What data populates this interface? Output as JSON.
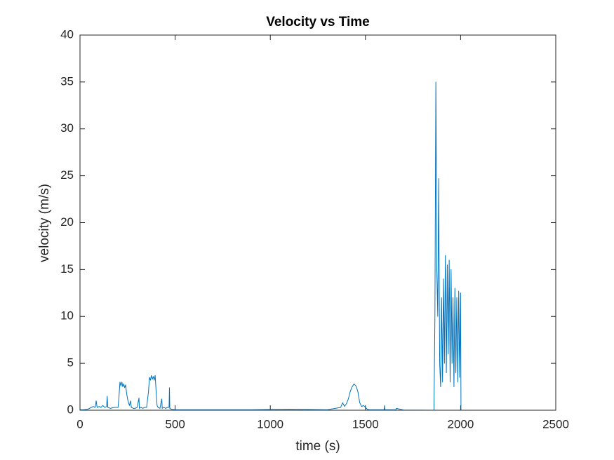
{
  "chart_data": {
    "type": "line",
    "title": "Velocity vs Time",
    "x_label": "time (s)",
    "y_label": "velocity (m/s)",
    "xlim": [
      0,
      2500
    ],
    "ylim": [
      0,
      40
    ],
    "xticks": [
      0,
      500,
      1000,
      1500,
      2000,
      2500
    ],
    "yticks": [
      0,
      5,
      10,
      15,
      20,
      25,
      30,
      35,
      40
    ],
    "grid": false,
    "x": [
      0,
      20,
      40,
      60,
      70,
      80,
      85,
      90,
      100,
      110,
      120,
      130,
      140,
      143,
      146,
      160,
      180,
      200,
      205,
      210,
      215,
      220,
      225,
      230,
      235,
      240,
      245,
      250,
      255,
      260,
      265,
      270,
      280,
      290,
      300,
      310,
      312,
      320,
      330,
      340,
      350,
      360,
      365,
      370,
      375,
      380,
      385,
      390,
      395,
      400,
      405,
      410,
      420,
      430,
      432,
      440,
      450,
      460,
      468,
      470,
      472,
      480,
      500,
      700,
      900,
      1100,
      1300,
      1370,
      1380,
      1390,
      1400,
      1410,
      1420,
      1430,
      1440,
      1450,
      1460,
      1470,
      1480,
      1490,
      1500,
      1510,
      1520,
      1598,
      1600,
      1602,
      1660,
      1662,
      1700,
      1860,
      1865,
      1870,
      1875,
      1880,
      1885,
      1890,
      1895,
      1900,
      1905,
      1910,
      1915,
      1920,
      1925,
      1930,
      1935,
      1940,
      1945,
      1950,
      1955,
      1960,
      1965,
      1970,
      1975,
      1980,
      1985,
      1990,
      1995,
      2000,
      2002
    ],
    "series": [
      {
        "color": "#0072bd",
        "values": [
          0.05,
          0.05,
          0.1,
          0.3,
          0.4,
          0.3,
          1.0,
          0.3,
          0.4,
          0.3,
          0.5,
          0.3,
          0.4,
          1.5,
          0.3,
          0.2,
          0.3,
          0.3,
          1.5,
          3.0,
          2.6,
          3.0,
          2.5,
          2.8,
          2.4,
          2.7,
          1.8,
          1.2,
          0.8,
          0.5,
          1.0,
          0.3,
          0.2,
          0.2,
          0.3,
          1.3,
          0.2,
          0.3,
          0.2,
          0.3,
          0.3,
          2.0,
          3.5,
          3.2,
          3.7,
          3.3,
          3.6,
          3.2,
          3.7,
          2.0,
          0.5,
          0.3,
          0.2,
          1.2,
          0.2,
          0.3,
          0.2,
          0.3,
          0.3,
          2.4,
          0.2,
          0.1,
          0.05,
          0.05,
          0.05,
          0.1,
          0.05,
          0.3,
          0.8,
          0.4,
          0.7,
          1.2,
          2.0,
          2.5,
          2.8,
          2.6,
          2.0,
          0.8,
          0.4,
          0.5,
          0.3,
          0.1,
          0.05,
          0.05,
          0.5,
          0.05,
          0.05,
          0.2,
          0.02,
          0,
          10,
          35,
          15,
          10,
          24.7,
          5,
          2.5,
          12,
          3,
          14,
          5,
          16.5,
          4,
          15.5,
          6,
          16,
          3,
          15,
          5,
          12,
          2.5,
          13,
          4,
          12,
          3,
          12.7,
          3.5,
          12.5,
          0
        ]
      }
    ]
  }
}
